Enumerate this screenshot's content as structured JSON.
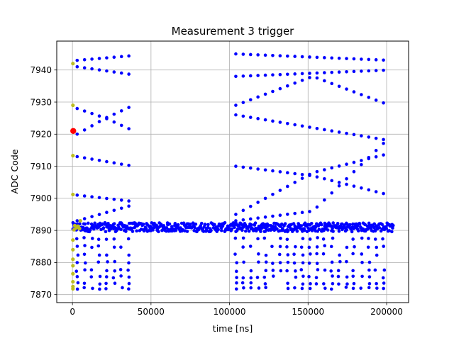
{
  "chart_data": {
    "type": "scatter",
    "title": "Measurement 3 trigger",
    "xlabel": "time [ns]",
    "ylabel": "ADC Code",
    "xlim": [
      -10000,
      214000
    ],
    "ylim": [
      7867.5,
      7949
    ],
    "xticks": [
      0,
      50000,
      100000,
      150000,
      200000
    ],
    "xtick_labels": [
      "0",
      "50000",
      "100000",
      "150000",
      "200000"
    ],
    "yticks": [
      7870,
      7880,
      7890,
      7900,
      7910,
      7920,
      7930,
      7940
    ],
    "ytick_labels": [
      "7870",
      "7880",
      "7890",
      "7900",
      "7910",
      "7920",
      "7930",
      "7940"
    ],
    "grid": true,
    "legend": "none",
    "colors": {
      "main": "#0000ff",
      "pre": "#bcbd22",
      "marker": "#ff0000"
    },
    "baseline": {
      "x_start": 0,
      "x_end": 204000,
      "y_center": 7891,
      "y_spread": 1.4
    },
    "groups": [
      {
        "x_start": 3000,
        "x_end": 39000,
        "bands": [
          {
            "from": 7943,
            "to": 7944.5
          },
          {
            "from": 7941,
            "to": 7938.5
          },
          {
            "from": 7928,
            "to": 7925,
            "to2": 7929
          },
          {
            "from": 7920,
            "to": 7925,
            "to2": 7921
          },
          {
            "from": 7913,
            "to": 7910
          },
          {
            "from": 7901,
            "to": 7899
          },
          {
            "from": 7893,
            "to": 7898
          }
        ]
      },
      {
        "x_start": 104000,
        "x_end": 202000,
        "bands": [
          {
            "from": 7945,
            "to": 7943
          },
          {
            "from": 7938,
            "to": 7940
          },
          {
            "from": 7929,
            "to": 7938,
            "to2": 7929
          },
          {
            "from": 7926,
            "to": 7918
          },
          {
            "from": 7910,
            "to": 7907,
            "to2": 7901
          },
          {
            "from": 7895,
            "to": 7908,
            "to2": 7914
          },
          {
            "from": 7893,
            "to": 7896,
            "to2": 7919
          }
        ]
      }
    ],
    "lower_levels": [
      7887.5,
      7885,
      7882.5,
      7880,
      7877.5,
      7875.5,
      7873.5,
      7872
    ],
    "pre_points": [
      {
        "x": 300,
        "y": 7942
      },
      {
        "x": 300,
        "y": 7929
      },
      {
        "x": 300,
        "y": 7913.3
      },
      {
        "x": 300,
        "y": 7901.2
      },
      {
        "x": 300,
        "y": 7887
      },
      {
        "x": 300,
        "y": 7884
      },
      {
        "x": 300,
        "y": 7881
      },
      {
        "x": 300,
        "y": 7879
      },
      {
        "x": 300,
        "y": 7876.5
      },
      {
        "x": 300,
        "y": 7874
      },
      {
        "x": 300,
        "y": 7872.5
      },
      {
        "x": 300,
        "y": 7871.8
      },
      {
        "x": 1500,
        "y": 7891.5
      },
      {
        "x": 2500,
        "y": 7890.8
      },
      {
        "x": 3500,
        "y": 7891.3
      },
      {
        "x": 4500,
        "y": 7890.6
      },
      {
        "x": 5000,
        "y": 7893
      },
      {
        "x": 1000,
        "y": 7890.2
      }
    ],
    "red_point": {
      "x": 500,
      "y": 7921
    }
  }
}
